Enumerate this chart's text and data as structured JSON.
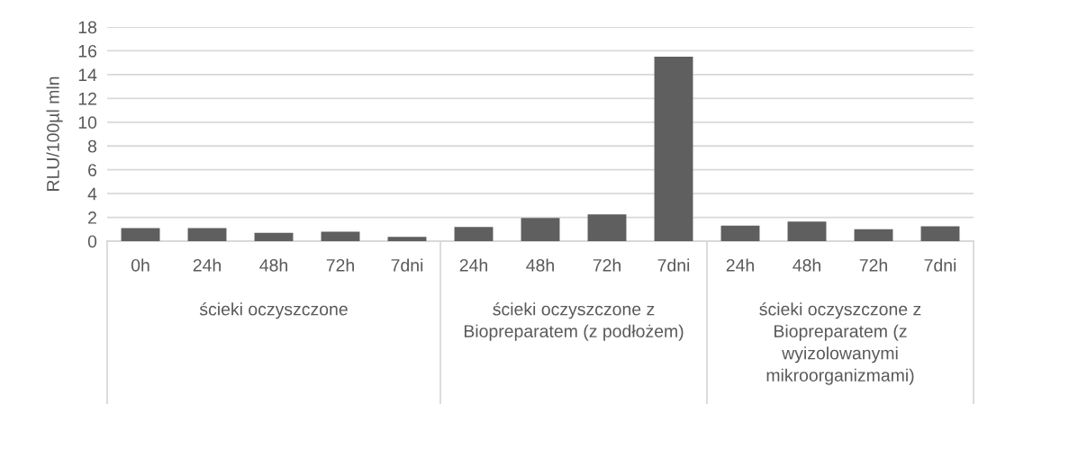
{
  "chart_data": {
    "type": "bar",
    "ylabel": "RLU/100µl mln",
    "categories": [
      "0h",
      "24h",
      "48h",
      "72h",
      "7dni",
      "24h",
      "48h",
      "72h",
      "7dni",
      "24h",
      "48h",
      "72h",
      "7dni"
    ],
    "values": [
      1.1,
      1.1,
      0.7,
      0.8,
      0.35,
      1.2,
      1.95,
      2.25,
      15.5,
      1.3,
      1.65,
      1.0,
      1.25
    ],
    "color": "#5f5f5f",
    "ylim": [
      0,
      18
    ],
    "yticks": [
      0,
      2,
      4,
      6,
      8,
      10,
      12,
      14,
      16,
      18
    ],
    "grid": "y",
    "annotations": [
      "ścieki oczyszczone",
      "ścieki oczyszczone z Biopreparatem (z podłożem)",
      "ścieki oczyszczone z Biopreparatem (z wyizolowanymi mikroorganizmami)"
    ]
  }
}
